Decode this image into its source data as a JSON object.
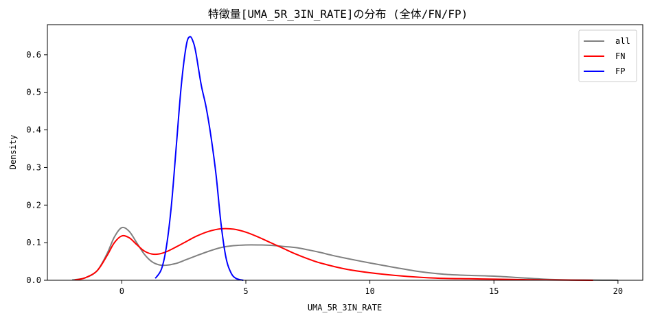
{
  "chart_data": {
    "type": "line",
    "title": "特徴量[UMA_5R_3IN_RATE]の分布 (全体/FN/FP)",
    "xlabel": "UMA_5R_3IN_RATE",
    "ylabel": "Density",
    "xlim": [
      -3,
      21
    ],
    "ylim": [
      0,
      0.68
    ],
    "xticks": [
      0,
      5,
      10,
      15,
      20
    ],
    "yticks": [
      0.0,
      0.1,
      0.2,
      0.3,
      0.4,
      0.5,
      0.6
    ],
    "xtick_labels": [
      "0",
      "5",
      "10",
      "15",
      "20"
    ],
    "ytick_labels": [
      "0.0",
      "0.1",
      "0.2",
      "0.3",
      "0.4",
      "0.5",
      "0.6"
    ],
    "grid": false,
    "legend_position": "top-right",
    "series": [
      {
        "name": "all",
        "color": "#808080",
        "x": [
          -2.0,
          -1.5,
          -1.0,
          -0.6,
          -0.3,
          0.0,
          0.3,
          0.6,
          0.9,
          1.2,
          1.5,
          1.8,
          2.2,
          2.6,
          3.0,
          3.5,
          4.0,
          4.5,
          5.0,
          5.5,
          6.0,
          6.5,
          7.0,
          7.5,
          8.0,
          8.5,
          9.0,
          10.0,
          11.0,
          12.0,
          13.0,
          14.0,
          15.0,
          16.0,
          17.0,
          18.0,
          19.0,
          20.0
        ],
        "y": [
          0.001,
          0.006,
          0.025,
          0.07,
          0.115,
          0.14,
          0.13,
          0.1,
          0.07,
          0.05,
          0.041,
          0.04,
          0.045,
          0.055,
          0.065,
          0.077,
          0.087,
          0.092,
          0.094,
          0.094,
          0.093,
          0.09,
          0.087,
          0.081,
          0.074,
          0.066,
          0.059,
          0.046,
          0.034,
          0.023,
          0.016,
          0.013,
          0.011,
          0.007,
          0.003,
          0.001,
          0.0005,
          0.0
        ]
      },
      {
        "name": "FN",
        "color": "#ff0000",
        "x": [
          -1.9,
          -1.5,
          -1.0,
          -0.6,
          -0.3,
          0.0,
          0.3,
          0.6,
          0.9,
          1.2,
          1.5,
          1.8,
          2.2,
          2.6,
          3.0,
          3.5,
          4.0,
          4.5,
          5.0,
          5.5,
          6.0,
          6.5,
          7.0,
          7.5,
          8.0,
          9.0,
          10.0,
          11.0,
          12.0,
          13.0,
          14.0,
          15.0,
          16.0,
          17.0,
          18.0,
          19.0
        ],
        "y": [
          0.001,
          0.006,
          0.025,
          0.065,
          0.1,
          0.118,
          0.113,
          0.095,
          0.078,
          0.07,
          0.07,
          0.076,
          0.089,
          0.103,
          0.117,
          0.13,
          0.137,
          0.136,
          0.128,
          0.115,
          0.1,
          0.085,
          0.07,
          0.057,
          0.046,
          0.03,
          0.02,
          0.013,
          0.008,
          0.005,
          0.004,
          0.003,
          0.002,
          0.001,
          0.0005,
          0.0
        ]
      },
      {
        "name": "FP",
        "color": "#0000ff",
        "x": [
          1.35,
          1.6,
          1.8,
          2.0,
          2.2,
          2.4,
          2.6,
          2.75,
          2.9,
          3.0,
          3.2,
          3.4,
          3.6,
          3.8,
          4.0,
          4.2,
          4.4,
          4.6,
          4.9
        ],
        "y": [
          0.005,
          0.03,
          0.09,
          0.2,
          0.36,
          0.52,
          0.625,
          0.648,
          0.63,
          0.6,
          0.52,
          0.46,
          0.38,
          0.28,
          0.15,
          0.06,
          0.02,
          0.005,
          0.0
        ]
      }
    ]
  }
}
